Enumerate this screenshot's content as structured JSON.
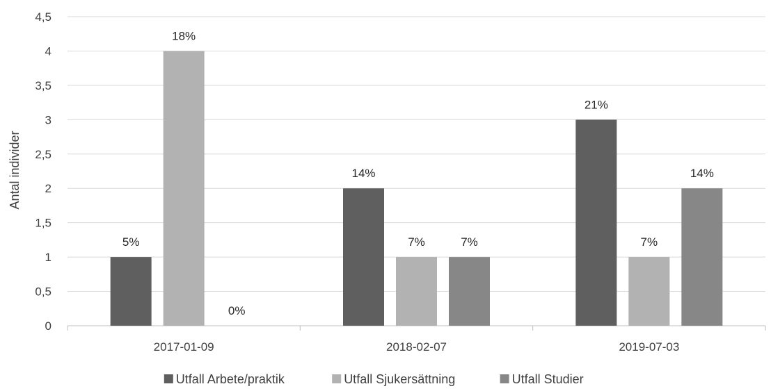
{
  "chart_data": {
    "type": "bar",
    "title": "",
    "xlabel": "",
    "ylabel": "Antal individer",
    "ylim": [
      0,
      4.5
    ],
    "y_ticks": [
      "0",
      "0,5",
      "1",
      "1,5",
      "2",
      "2,5",
      "3",
      "3,5",
      "4",
      "4,5"
    ],
    "y_tick_values": [
      0,
      0.5,
      1,
      1.5,
      2,
      2.5,
      3,
      3.5,
      4,
      4.5
    ],
    "grid": true,
    "legend_position": "bottom",
    "categories": [
      "2017-01-09",
      "2018-02-07",
      "2019-07-03"
    ],
    "series": [
      {
        "name": "Utfall Arbete/praktik",
        "color": "#5f5f5f",
        "values": [
          1,
          2,
          3
        ],
        "labels": [
          "5%",
          "14%",
          "21%"
        ]
      },
      {
        "name": "Utfall Sjukersättning",
        "color": "#b2b2b2",
        "values": [
          4,
          1,
          1
        ],
        "labels": [
          "18%",
          "7%",
          "7%"
        ]
      },
      {
        "name": "Utfall Studier",
        "color": "#878787",
        "values": [
          0,
          1,
          2
        ],
        "labels": [
          "0%",
          "7%",
          "14%"
        ]
      }
    ]
  }
}
